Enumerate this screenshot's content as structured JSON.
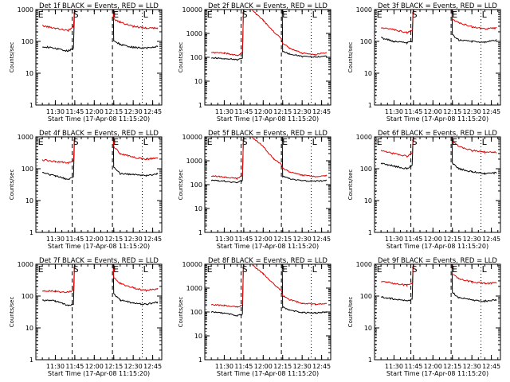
{
  "figure": {
    "xlabel": "Start Time (17-Apr-08 11:15:20)",
    "ylabel": "Counts/sec",
    "x_tick_labels": [
      "11:30",
      "11:45",
      "12:00",
      "12:15",
      "12:30",
      "12:45"
    ],
    "markers": [
      {
        "label": "E",
        "time": "11:16",
        "style": "dotted"
      },
      {
        "label": "S",
        "time": "11:43",
        "style": "dashed"
      },
      {
        "label": "E",
        "time": "12:14",
        "style": "dashed"
      },
      {
        "label": "L",
        "time": "12:37",
        "style": "dotted"
      }
    ],
    "colors": {
      "events": "#000000",
      "lld": "#e00000"
    }
  },
  "chart_data": [
    {
      "type": "line",
      "title": "Det 1f BLACK = Events, RED = LLD",
      "yscale": "log",
      "ylim": [
        1,
        1000
      ],
      "y_tick_labels": [
        "1",
        "10",
        "100",
        "1000"
      ],
      "x": [
        "11:20",
        "11:30",
        "11:40",
        "11:44",
        "11:48",
        "12:00",
        "12:12",
        "12:14",
        "12:15",
        "12:20",
        "12:30",
        "12:40",
        "12:49"
      ],
      "series": [
        {
          "name": "Events",
          "values": [
            70,
            60,
            50,
            60,
            null,
            null,
            null,
            null,
            110,
            80,
            65,
            62,
            70
          ]
        },
        {
          "name": "LLD",
          "values": [
            310,
            260,
            220,
            300,
            null,
            null,
            null,
            null,
            500,
            400,
            300,
            260,
            260
          ]
        }
      ]
    },
    {
      "type": "line",
      "title": "Det 2f BLACK = Events, RED = LLD",
      "yscale": "log",
      "ylim": [
        1,
        10000
      ],
      "y_tick_labels": [
        "1",
        "10",
        "100",
        "1000",
        "10000"
      ],
      "x": [
        "11:20",
        "11:30",
        "11:40",
        "11:44",
        "11:48",
        "11:52",
        "12:00",
        "12:08",
        "12:14",
        "12:15",
        "12:20",
        "12:30",
        "12:40",
        "12:49"
      ],
      "series": [
        {
          "name": "Events",
          "values": [
            95,
            90,
            80,
            90,
            null,
            null,
            null,
            null,
            null,
            180,
            140,
            110,
            105,
            110
          ]
        },
        {
          "name": "LLD",
          "values": [
            160,
            150,
            120,
            160,
            null,
            9000,
            3500,
            1200,
            600,
            400,
            250,
            150,
            130,
            160
          ]
        }
      ]
    },
    {
      "type": "line",
      "title": "Det 3f BLACK = Events, RED = LLD",
      "yscale": "log",
      "ylim": [
        1,
        1000
      ],
      "y_tick_labels": [
        "1",
        "10",
        "100",
        "1000"
      ],
      "x": [
        "11:20",
        "11:30",
        "11:40",
        "11:44",
        "11:48",
        "12:00",
        "12:12",
        "12:14",
        "12:15",
        "12:20",
        "12:30",
        "12:40",
        "12:49"
      ],
      "series": [
        {
          "name": "Events",
          "values": [
            130,
            100,
            90,
            100,
            null,
            null,
            null,
            null,
            160,
            110,
            100,
            95,
            110
          ]
        },
        {
          "name": "LLD",
          "values": [
            270,
            230,
            190,
            230,
            null,
            null,
            null,
            null,
            500,
            380,
            290,
            250,
            260
          ]
        }
      ]
    },
    {
      "type": "line",
      "title": "Det 4f BLACK = Events, RED = LLD",
      "yscale": "log",
      "ylim": [
        1,
        1000
      ],
      "y_tick_labels": [
        "1",
        "10",
        "100",
        "1000"
      ],
      "x": [
        "11:20",
        "11:30",
        "11:40",
        "11:44",
        "11:48",
        "12:00",
        "12:12",
        "12:14",
        "12:15",
        "12:20",
        "12:30",
        "12:40",
        "12:49"
      ],
      "series": [
        {
          "name": "Events",
          "values": [
            75,
            60,
            45,
            55,
            null,
            null,
            null,
            null,
            110,
            70,
            65,
            60,
            70
          ]
        },
        {
          "name": "LLD",
          "values": [
            190,
            170,
            150,
            190,
            null,
            null,
            null,
            null,
            500,
            300,
            230,
            200,
            220
          ]
        }
      ]
    },
    {
      "type": "line",
      "title": "Det 5f BLACK = Events, RED = LLD",
      "yscale": "log",
      "ylim": [
        1,
        10000
      ],
      "y_tick_labels": [
        "1",
        "10",
        "100",
        "1000",
        "10000"
      ],
      "x": [
        "11:20",
        "11:30",
        "11:40",
        "11:44",
        "11:48",
        "11:52",
        "12:00",
        "12:08",
        "12:14",
        "12:15",
        "12:20",
        "12:30",
        "12:40",
        "12:49"
      ],
      "series": [
        {
          "name": "Events",
          "values": [
            150,
            140,
            120,
            150,
            null,
            null,
            null,
            null,
            null,
            220,
            180,
            145,
            140,
            150
          ]
        },
        {
          "name": "LLD",
          "values": [
            230,
            210,
            180,
            240,
            null,
            9000,
            4000,
            1200,
            700,
            500,
            350,
            250,
            220,
            240
          ]
        }
      ]
    },
    {
      "type": "line",
      "title": "Det 6f BLACK = Events, RED = LLD",
      "yscale": "log",
      "ylim": [
        1,
        1000
      ],
      "y_tick_labels": [
        "1",
        "10",
        "100",
        "1000"
      ],
      "x": [
        "11:20",
        "11:30",
        "11:40",
        "11:44",
        "11:48",
        "12:00",
        "12:12",
        "12:14",
        "12:15",
        "12:20",
        "12:30",
        "12:40",
        "12:49"
      ],
      "series": [
        {
          "name": "Events",
          "values": [
            150,
            120,
            100,
            130,
            null,
            null,
            null,
            null,
            150,
            100,
            80,
            70,
            75
          ]
        },
        {
          "name": "LLD",
          "values": [
            360,
            300,
            250,
            300,
            null,
            null,
            null,
            null,
            700,
            500,
            380,
            330,
            330
          ]
        }
      ]
    },
    {
      "type": "line",
      "title": "Det 7f BLACK = Events, RED = LLD",
      "yscale": "log",
      "ylim": [
        1,
        1000
      ],
      "y_tick_labels": [
        "1",
        "10",
        "100",
        "1000"
      ],
      "x": [
        "11:20",
        "11:30",
        "11:40",
        "11:44",
        "11:48",
        "12:00",
        "12:12",
        "12:14",
        "12:15",
        "12:20",
        "12:30",
        "12:40",
        "12:49"
      ],
      "series": [
        {
          "name": "Events",
          "values": [
            75,
            70,
            50,
            55,
            null,
            null,
            null,
            null,
            120,
            75,
            60,
            55,
            65
          ]
        },
        {
          "name": "LLD",
          "values": [
            150,
            140,
            130,
            160,
            null,
            null,
            null,
            null,
            400,
            250,
            180,
            150,
            170
          ]
        }
      ]
    },
    {
      "type": "line",
      "title": "Det 8f BLACK = Events, RED = LLD",
      "yscale": "log",
      "ylim": [
        1,
        10000
      ],
      "y_tick_labels": [
        "1",
        "10",
        "100",
        "1000",
        "10000"
      ],
      "x": [
        "11:20",
        "11:30",
        "11:40",
        "11:44",
        "11:48",
        "11:52",
        "12:00",
        "12:08",
        "12:14",
        "12:15",
        "12:20",
        "12:30",
        "12:40",
        "12:49"
      ],
      "series": [
        {
          "name": "Events",
          "values": [
            100,
            90,
            70,
            80,
            null,
            null,
            null,
            null,
            null,
            160,
            120,
            95,
            90,
            100
          ]
        },
        {
          "name": "LLD",
          "values": [
            200,
            190,
            160,
            200,
            null,
            9000,
            4000,
            1500,
            800,
            500,
            330,
            230,
            210,
            230
          ]
        }
      ]
    },
    {
      "type": "line",
      "title": "Det 9f BLACK = Events, RED = LLD",
      "yscale": "log",
      "ylim": [
        1,
        1000
      ],
      "y_tick_labels": [
        "1",
        "10",
        "100",
        "1000"
      ],
      "x": [
        "11:20",
        "11:30",
        "11:40",
        "11:44",
        "11:48",
        "12:00",
        "12:12",
        "12:14",
        "12:15",
        "12:20",
        "12:30",
        "12:40",
        "12:49"
      ],
      "series": [
        {
          "name": "Events",
          "values": [
            95,
            80,
            70,
            80,
            null,
            null,
            null,
            null,
            130,
            90,
            75,
            70,
            75
          ]
        },
        {
          "name": "LLD",
          "values": [
            290,
            250,
            220,
            260,
            null,
            null,
            null,
            null,
            500,
            350,
            280,
            250,
            260
          ]
        }
      ]
    }
  ]
}
